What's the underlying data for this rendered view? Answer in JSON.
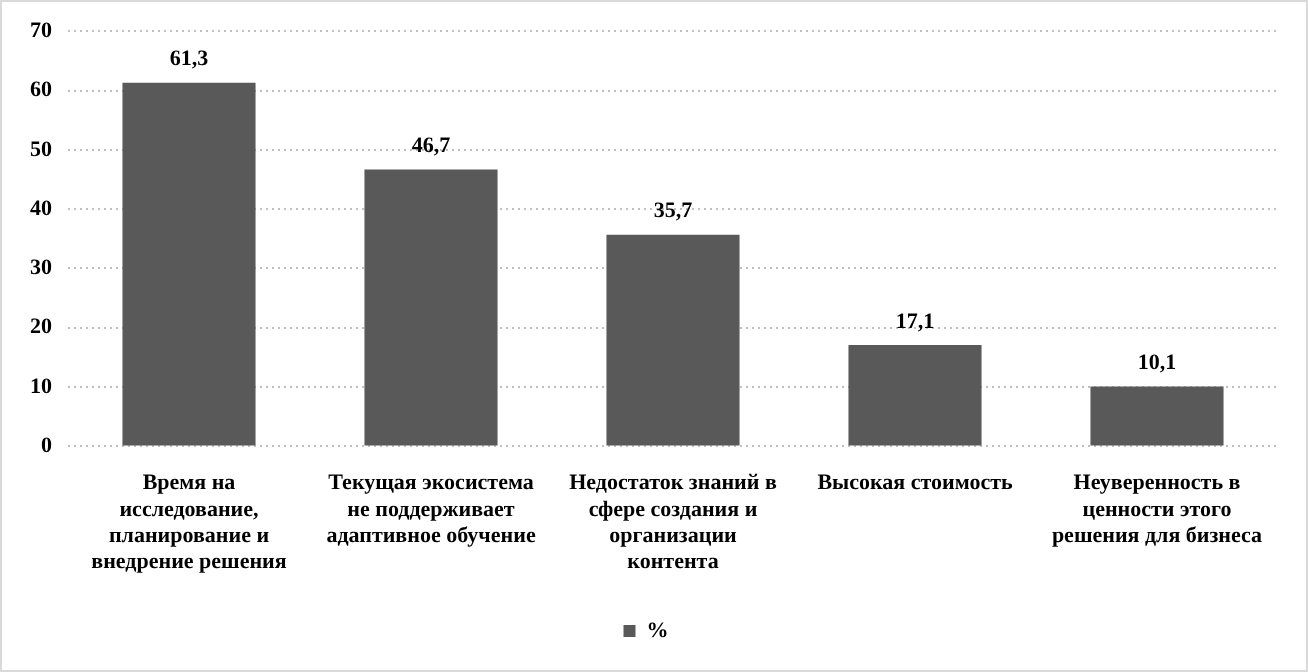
{
  "chart_data": {
    "type": "bar",
    "categories": [
      "Время на исследование, планирование и внедрение решения",
      "Текущая экосистема не поддерживает адаптивное обучение",
      "Недостаток знаний в сфере создания и организации контента",
      "Высокая стоимость",
      "Неуверенность в ценности этого решения для бизнеса"
    ],
    "series": [
      {
        "name": "%",
        "color": "#595959",
        "values": [
          61.3,
          46.7,
          35.7,
          17.1,
          10.1
        ],
        "value_labels": [
          "61,3",
          "46,7",
          "35,7",
          "17,1",
          "10,1"
        ]
      }
    ],
    "ylim": [
      0,
      70
    ],
    "yticks": [
      0,
      10,
      20,
      30,
      40,
      50,
      60,
      70
    ],
    "grid": "y",
    "legend": "bottom"
  }
}
